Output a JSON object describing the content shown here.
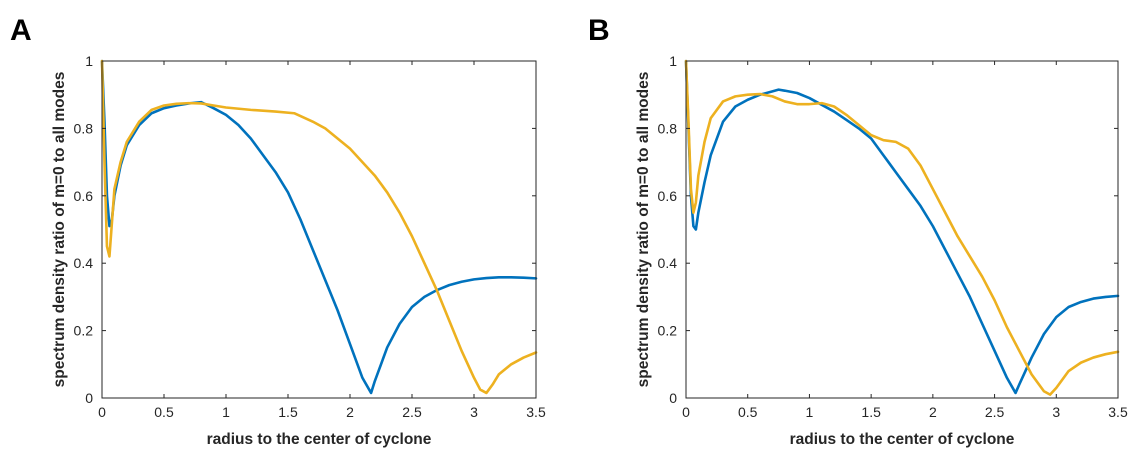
{
  "chart_data": [
    {
      "panel": "A",
      "type": "line",
      "xlabel": "radius to the center of cyclone",
      "ylabel": "spectrum density ratio of m=0 to all modes",
      "xlim": [
        0,
        3.5
      ],
      "ylim": [
        0,
        1
      ],
      "xticks": [
        0,
        0.5,
        1,
        1.5,
        2,
        2.5,
        3,
        3.5
      ],
      "xtick_labels": [
        "0",
        "0.5",
        "1",
        "1.5",
        "2",
        "2.5",
        "3",
        "3.5"
      ],
      "yticks": [
        0,
        0.2,
        0.4,
        0.6,
        0.8,
        1
      ],
      "ytick_labels": [
        "0",
        "0.2",
        "0.4",
        "0.6",
        "0.8",
        "1"
      ],
      "series": [
        {
          "name": "blue",
          "color": "#0072BD",
          "x": [
            0,
            0.02,
            0.04,
            0.06,
            0.08,
            0.1,
            0.15,
            0.2,
            0.3,
            0.4,
            0.5,
            0.6,
            0.7,
            0.8,
            0.9,
            1.0,
            1.1,
            1.2,
            1.3,
            1.4,
            1.5,
            1.6,
            1.7,
            1.8,
            1.9,
            2.0,
            2.1,
            2.17,
            2.2,
            2.3,
            2.4,
            2.5,
            2.6,
            2.7,
            2.8,
            2.9,
            3.0,
            3.1,
            3.2,
            3.3,
            3.4,
            3.5
          ],
          "y": [
            1.0,
            0.82,
            0.6,
            0.51,
            0.53,
            0.6,
            0.69,
            0.75,
            0.81,
            0.845,
            0.86,
            0.868,
            0.874,
            0.878,
            0.86,
            0.84,
            0.81,
            0.77,
            0.72,
            0.67,
            0.61,
            0.53,
            0.44,
            0.35,
            0.26,
            0.16,
            0.06,
            0.015,
            0.05,
            0.15,
            0.22,
            0.27,
            0.3,
            0.32,
            0.335,
            0.345,
            0.352,
            0.356,
            0.358,
            0.358,
            0.357,
            0.355
          ]
        },
        {
          "name": "orange",
          "color": "#EDB120",
          "x": [
            0,
            0.02,
            0.04,
            0.06,
            0.08,
            0.1,
            0.15,
            0.2,
            0.3,
            0.4,
            0.5,
            0.6,
            0.7,
            0.8,
            0.9,
            1.0,
            1.2,
            1.4,
            1.55,
            1.7,
            1.8,
            1.9,
            2.0,
            2.1,
            2.2,
            2.3,
            2.4,
            2.5,
            2.6,
            2.7,
            2.8,
            2.9,
            3.0,
            3.05,
            3.1,
            3.15,
            3.2,
            3.3,
            3.4,
            3.5
          ],
          "y": [
            1.0,
            0.7,
            0.45,
            0.42,
            0.52,
            0.62,
            0.7,
            0.76,
            0.82,
            0.855,
            0.868,
            0.873,
            0.875,
            0.874,
            0.868,
            0.862,
            0.855,
            0.85,
            0.845,
            0.82,
            0.8,
            0.77,
            0.74,
            0.7,
            0.66,
            0.61,
            0.55,
            0.48,
            0.4,
            0.32,
            0.23,
            0.14,
            0.06,
            0.025,
            0.015,
            0.04,
            0.07,
            0.1,
            0.12,
            0.135
          ]
        }
      ]
    },
    {
      "panel": "B",
      "type": "line",
      "xlabel": "radius to the center of cyclone",
      "ylabel": "spectrum density ratio of m=0 to all modes",
      "xlim": [
        0,
        3.5
      ],
      "ylim": [
        0,
        1
      ],
      "xticks": [
        0,
        0.5,
        1,
        1.5,
        2,
        2.5,
        3,
        3.5
      ],
      "xtick_labels": [
        "0",
        "0.5",
        "1",
        "1.5",
        "2",
        "2.5",
        "3",
        "3.5"
      ],
      "yticks": [
        0,
        0.2,
        0.4,
        0.6,
        0.8,
        1
      ],
      "ytick_labels": [
        "0",
        "0.2",
        "0.4",
        "0.6",
        "0.8",
        "1"
      ],
      "series": [
        {
          "name": "blue",
          "color": "#0072BD",
          "x": [
            0,
            0.02,
            0.04,
            0.06,
            0.08,
            0.1,
            0.15,
            0.2,
            0.3,
            0.4,
            0.5,
            0.6,
            0.7,
            0.75,
            0.8,
            0.9,
            1.0,
            1.1,
            1.2,
            1.3,
            1.4,
            1.5,
            1.6,
            1.7,
            1.8,
            1.9,
            2.0,
            2.1,
            2.2,
            2.3,
            2.4,
            2.5,
            2.6,
            2.67,
            2.7,
            2.8,
            2.9,
            3.0,
            3.1,
            3.2,
            3.3,
            3.4,
            3.5
          ],
          "y": [
            1.0,
            0.8,
            0.6,
            0.51,
            0.5,
            0.55,
            0.64,
            0.72,
            0.82,
            0.865,
            0.885,
            0.9,
            0.91,
            0.915,
            0.912,
            0.905,
            0.89,
            0.87,
            0.85,
            0.825,
            0.8,
            0.77,
            0.72,
            0.67,
            0.62,
            0.57,
            0.51,
            0.44,
            0.37,
            0.3,
            0.22,
            0.14,
            0.06,
            0.015,
            0.04,
            0.12,
            0.19,
            0.24,
            0.27,
            0.285,
            0.295,
            0.3,
            0.303
          ]
        },
        {
          "name": "orange",
          "color": "#EDB120",
          "x": [
            0,
            0.02,
            0.04,
            0.06,
            0.08,
            0.1,
            0.15,
            0.2,
            0.3,
            0.4,
            0.5,
            0.6,
            0.7,
            0.8,
            0.9,
            1.0,
            1.1,
            1.2,
            1.3,
            1.4,
            1.5,
            1.6,
            1.7,
            1.8,
            1.9,
            2.0,
            2.1,
            2.2,
            2.3,
            2.4,
            2.5,
            2.6,
            2.7,
            2.8,
            2.9,
            2.95,
            3.0,
            3.1,
            3.2,
            3.3,
            3.4,
            3.5
          ],
          "y": [
            1.0,
            0.82,
            0.62,
            0.55,
            0.58,
            0.66,
            0.76,
            0.83,
            0.88,
            0.895,
            0.9,
            0.902,
            0.895,
            0.88,
            0.872,
            0.872,
            0.875,
            0.865,
            0.84,
            0.81,
            0.78,
            0.765,
            0.76,
            0.74,
            0.69,
            0.62,
            0.55,
            0.48,
            0.42,
            0.36,
            0.29,
            0.21,
            0.14,
            0.07,
            0.02,
            0.01,
            0.03,
            0.08,
            0.105,
            0.12,
            0.13,
            0.137
          ]
        }
      ]
    }
  ]
}
